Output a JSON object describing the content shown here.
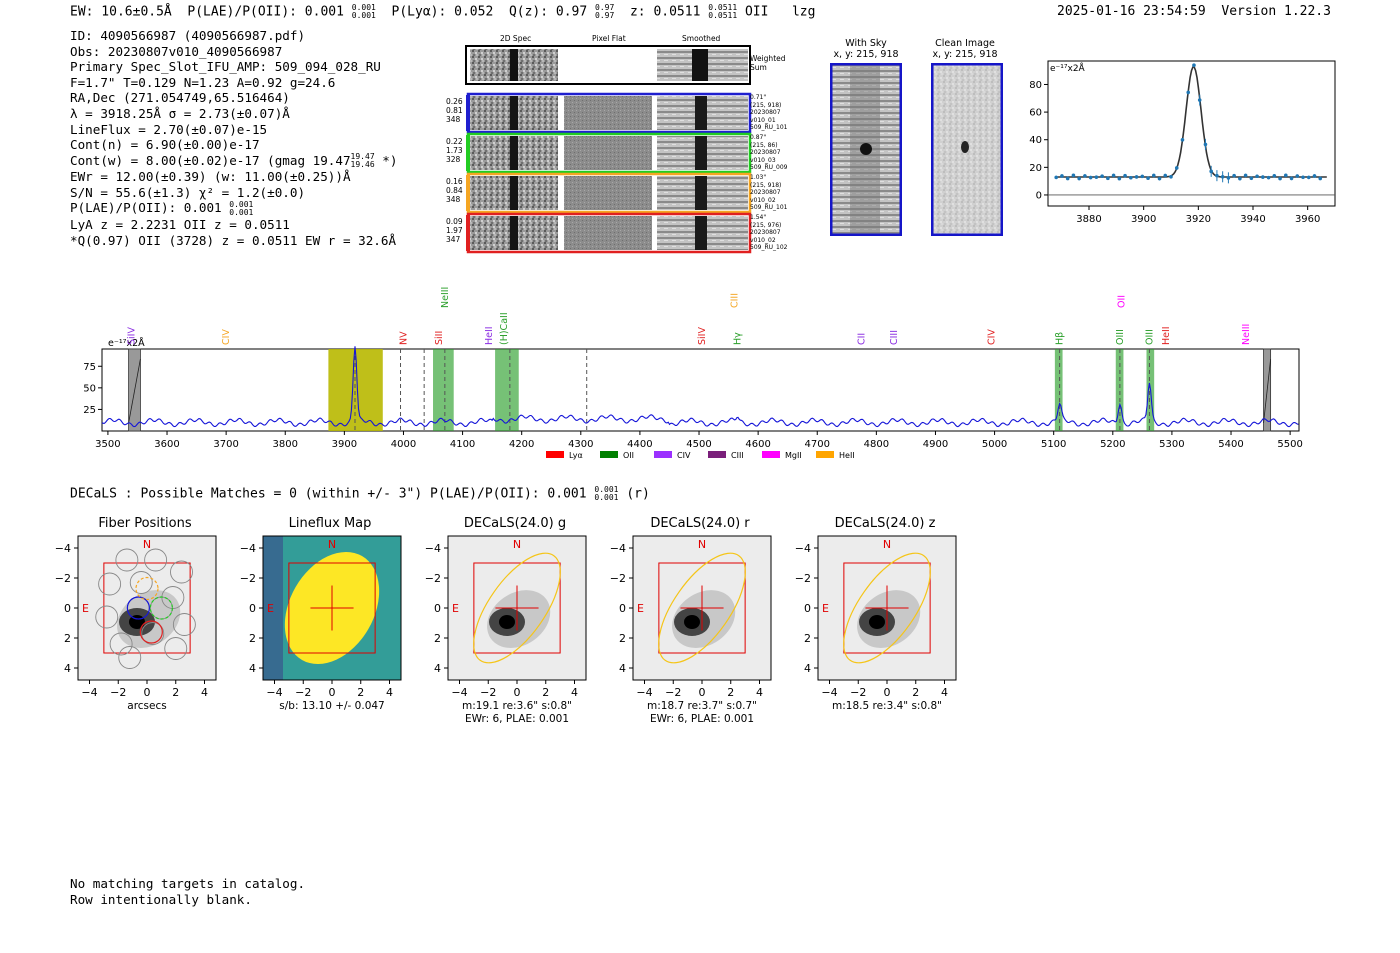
{
  "header": {
    "ew": "EW: 10.6±0.5Å",
    "plae_label": "P(LAE)/P(OII): 0.001",
    "plae_hi": "0.001",
    "plae_lo": "0.001",
    "plya": "P(Lyα): 0.052",
    "qz_label": "Q(z): 0.97",
    "qz_hi": "0.97",
    "qz_lo": "0.97",
    "z_label": "z: 0.0511",
    "z_hi": "0.0511",
    "z_lo": "0.0511",
    "line": "OII",
    "lzg": "lzg",
    "datetime": "2025-01-16 23:54:59",
    "version": "Version 1.22.3"
  },
  "info": {
    "id": "ID: 4090566987 (4090566987.pdf)",
    "obs": "Obs: 20230807v010_4090566987",
    "primary": "Primary Spec_Slot_IFU_AMP: 509_094_028_RU",
    "params": "F=1.7\"  T=0.129  N=1.23  A=0.92  g=24.6",
    "radec": "RA,Dec (271.054749,65.516464)",
    "lambda": "λ = 3918.25Å  σ = 2.73(±0.07)Å",
    "lineflux": "LineFlux = 2.70(±0.07)e-15",
    "contn": "Cont(n) = 6.90(±0.00)e-17",
    "contw": "Cont(w) = 8.00(±0.02)e-17 (gmag 19.47",
    "contw_hi": "19.47",
    "contw_lo": "19.46",
    "contw_end": "*)",
    "ewr": "EWr = 12.00(±0.39) (w: 11.00(±0.25))Å",
    "sn": "S/N = 55.6(±1.3)  χ² = 1.2(±0.0)",
    "plae": "P(LAE)/P(OII): 0.001",
    "plae_hi": "0.001",
    "plae_lo": "0.001",
    "lya": "LyA z = 2.2231  OII z = 0.0511",
    "q": "*Q(0.97) OII (3728) z = 0.0511  EW r = 32.6Å"
  },
  "cutouts": {
    "col_2d": "2D Spec",
    "col_flat": "Pixel Flat",
    "col_smooth": "Smoothed",
    "weighted": "Weighted",
    "sum": "Sum",
    "rows": [
      {
        "color": "#1f1fcf",
        "left": [
          "0.26",
          "0.81",
          "348"
        ],
        "right": [
          "0.71\"",
          "(215, 918)",
          "20230807",
          "v010_01",
          "509_RU_101"
        ]
      },
      {
        "color": "#22cc22",
        "left": [
          "0.22",
          "1.73",
          "328"
        ],
        "right": [
          "0.87\"",
          "(215, 86)",
          "20230807",
          "v010_03",
          "509_RU_009"
        ]
      },
      {
        "color": "#f5a623",
        "left": [
          "0.16",
          "0.84",
          "348"
        ],
        "right": [
          "1.03\"",
          "(215, 918)",
          "20230807",
          "v010_02",
          "509_RU_101"
        ]
      },
      {
        "color": "#e02020",
        "left": [
          "0.09",
          "1.97",
          "347"
        ],
        "right": [
          "1.54\"",
          "(215, 976)",
          "20230807",
          "v010_02",
          "509_RU_102"
        ]
      }
    ]
  },
  "sky": {
    "with_sky": "With Sky",
    "with_sky_xy": "x, y: 215, 918",
    "clean": "Clean Image",
    "clean_xy": "x, y: 215, 918"
  },
  "fit_plot": {
    "unit": "e⁻¹⁷x2Å",
    "xticks": [
      "3880",
      "3900",
      "3920",
      "3940",
      "3960"
    ],
    "yticks": [
      "0",
      "20",
      "40",
      "60",
      "80"
    ]
  },
  "spectrum": {
    "unit": "e⁻¹⁷x2Å",
    "yticks": [
      "25",
      "50",
      "75"
    ],
    "xticks": [
      "3500",
      "3600",
      "3700",
      "3800",
      "3900",
      "4000",
      "4100",
      "4200",
      "4300",
      "4400",
      "4500",
      "4600",
      "4700",
      "4800",
      "4900",
      "5000",
      "5100",
      "5200",
      "5300",
      "5400",
      "5500"
    ],
    "lines": [
      {
        "label": "SiIV",
        "color": "#8a2be2",
        "wl": 3540,
        "row": "low"
      },
      {
        "label": "CIV",
        "color": "#f5a623",
        "wl": 3700,
        "row": "low"
      },
      {
        "label": "NV",
        "color": "#e02020",
        "wl": 4000,
        "row": "low"
      },
      {
        "label": "NeIII",
        "color": "#2ca02c",
        "wl": 4070,
        "row": "high"
      },
      {
        "label": "SiII",
        "color": "#e02020",
        "wl": 4060,
        "row": "low"
      },
      {
        "label": "HeII",
        "color": "#8a2be2",
        "wl": 4145,
        "row": "low"
      },
      {
        "label": "(H)CaII",
        "color": "#2ca02c",
        "wl": 4170,
        "row": "low"
      },
      {
        "label": "CIII",
        "color": "#f5a623",
        "wl": 4560,
        "row": "high"
      },
      {
        "label": "SiIV",
        "color": "#e02020",
        "wl": 4505,
        "row": "low"
      },
      {
        "label": "Hγ",
        "color": "#2ca02c",
        "wl": 4565,
        "row": "low"
      },
      {
        "label": "CII",
        "color": "#8a2be2",
        "wl": 4775,
        "row": "low"
      },
      {
        "label": "CIII",
        "color": "#8a2be2",
        "wl": 4830,
        "row": "low"
      },
      {
        "label": "CIV",
        "color": "#e02020",
        "wl": 4995,
        "row": "low"
      },
      {
        "label": "Hβ",
        "color": "#2ca02c",
        "wl": 5110,
        "row": "low"
      },
      {
        "label": "OII",
        "color": "#ff00ff",
        "wl": 5215,
        "row": "high"
      },
      {
        "label": "OIII",
        "color": "#2ca02c",
        "wl": 5212,
        "row": "low"
      },
      {
        "label": "OIII",
        "color": "#2ca02c",
        "wl": 5262,
        "row": "low"
      },
      {
        "label": "HeII",
        "color": "#e02020",
        "wl": 5290,
        "row": "low"
      },
      {
        "label": "NeIII",
        "color": "#ff00ff",
        "wl": 5425,
        "row": "low"
      }
    ],
    "legend": [
      {
        "label": "Lyα",
        "color": "#ff0000"
      },
      {
        "label": "OII",
        "color": "#008000"
      },
      {
        "label": "CIV",
        "color": "#9b30ff"
      },
      {
        "label": "CIII",
        "color": "#7a1f7a"
      },
      {
        "label": "MgII",
        "color": "#ff00ff"
      },
      {
        "label": "HeII",
        "color": "#ffa500"
      }
    ]
  },
  "decals": {
    "header": "DECaLS : Possible Matches = 0 (within +/- 3\")  P(LAE)/P(OII): 0.001",
    "hi": "0.001",
    "lo": "0.001",
    "band": "(r)"
  },
  "panels": [
    {
      "title": "Fiber Positions",
      "caption": [
        "arcsecs"
      ]
    },
    {
      "title": "Lineflux Map",
      "caption": [
        "s/b: 13.10 +/- 0.047"
      ]
    },
    {
      "title": "DECaLS(24.0) g",
      "caption": [
        "m:19.1  re:3.6\"  s:0.8\"",
        "EWr: 6, PLAE: 0.001"
      ]
    },
    {
      "title": "DECaLS(24.0) r",
      "caption": [
        "m:18.7  re:3.7\"  s:0.7\"",
        "EWr: 6, PLAE: 0.001"
      ]
    },
    {
      "title": "DECaLS(24.0) z",
      "caption": [
        "m:18.5  re:3.4\"  s:0.8\""
      ]
    }
  ],
  "panel_axes": {
    "ticks": [
      "−4",
      "−2",
      "0",
      "2",
      "4"
    ],
    "n": "N",
    "e": "E"
  },
  "footer": {
    "line1": "No matching targets in catalog.",
    "line2": "Row intentionally blank."
  }
}
